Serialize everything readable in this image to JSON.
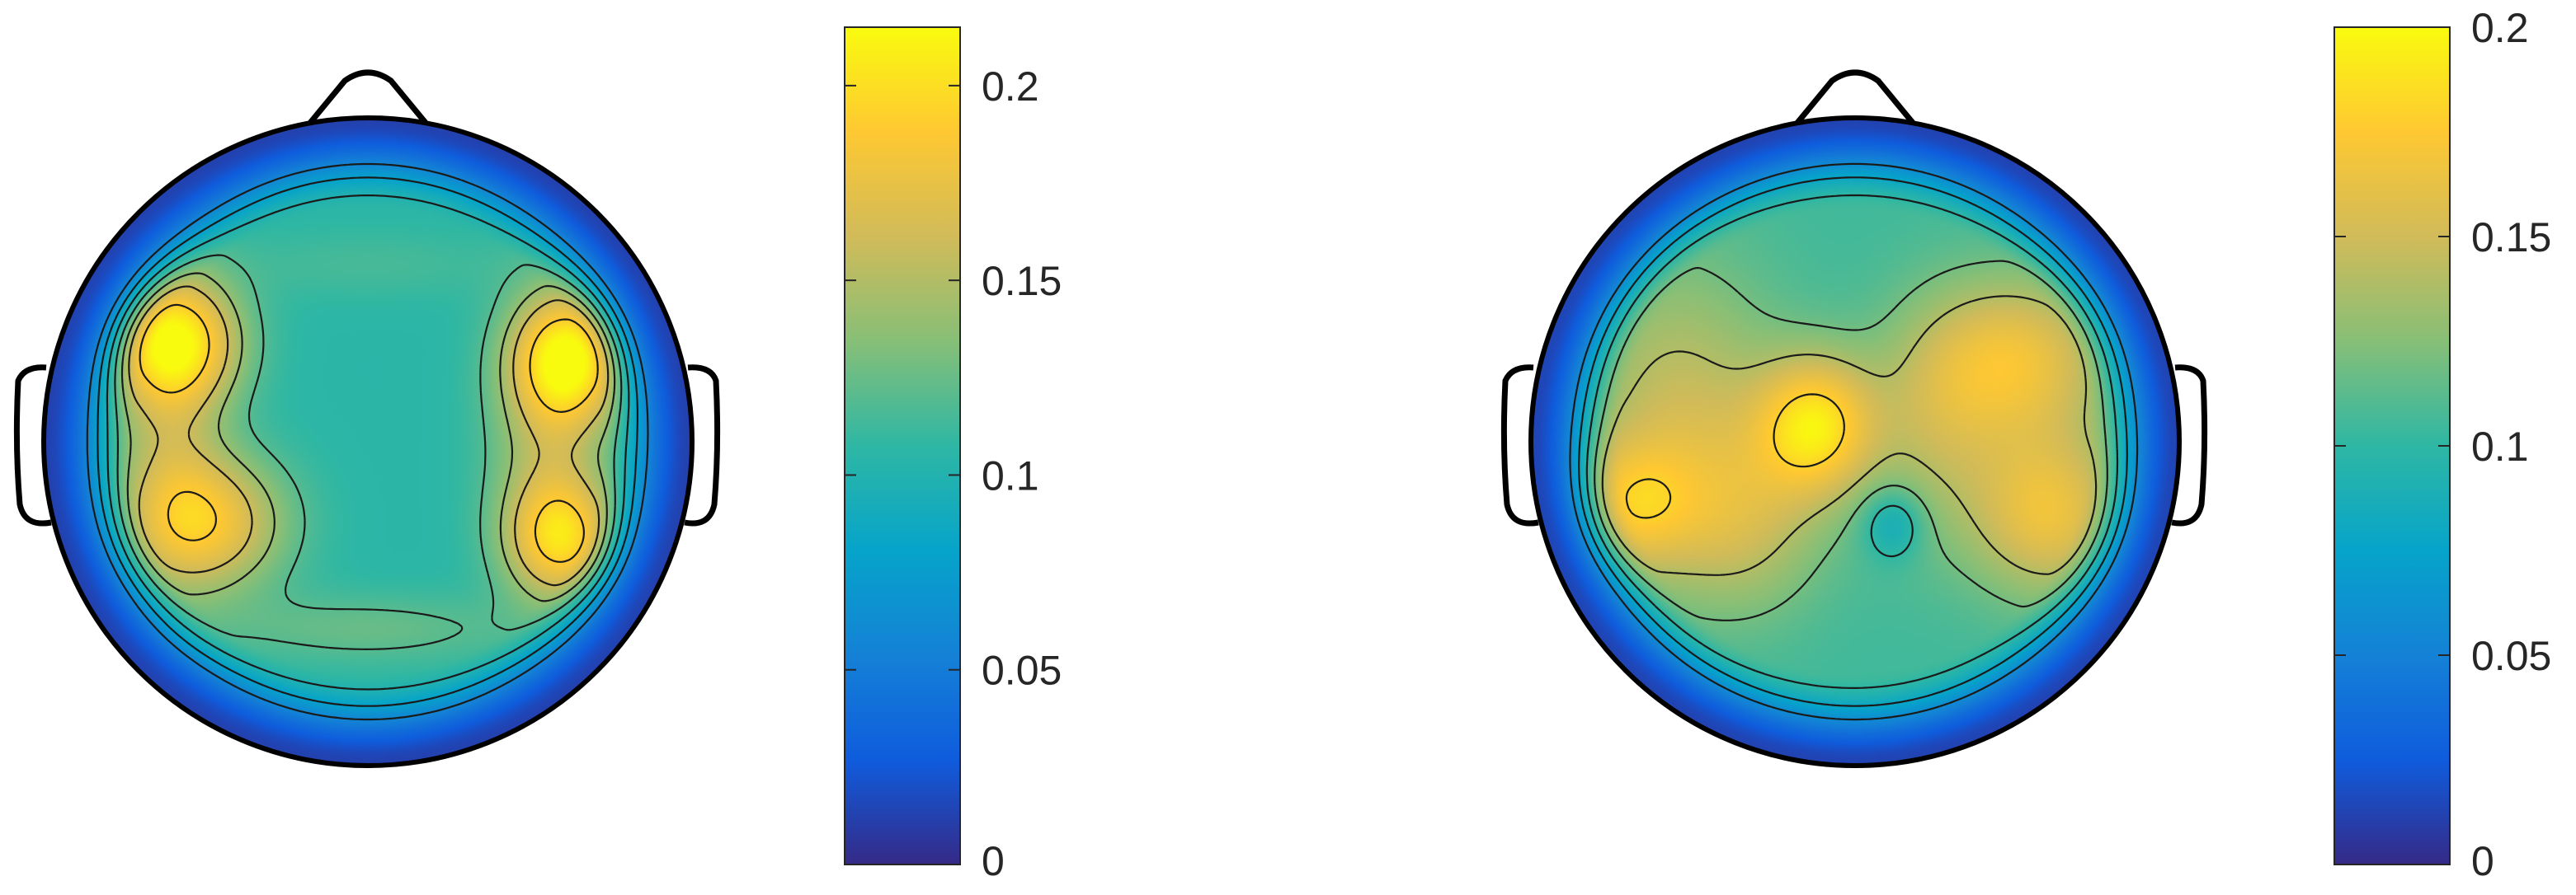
{
  "chart_data": [
    {
      "type": "heatmap",
      "title": "",
      "colormap": "parula",
      "colorbar": {
        "range": [
          0,
          0.215
        ],
        "ticks": [
          {
            "value": 0,
            "label": "0"
          },
          {
            "value": 0.05,
            "label": "0.05"
          },
          {
            "value": 0.1,
            "label": "0.1"
          },
          {
            "value": 0.15,
            "label": "0.15"
          },
          {
            "value": 0.2,
            "label": "0.2"
          }
        ]
      },
      "contour_levels": [
        0.06,
        0.08,
        0.1,
        0.12,
        0.14,
        0.16,
        0.19
      ],
      "blobs": [
        {
          "x": -0.6,
          "y": 0.31,
          "amp": 0.1,
          "sx": 0.14,
          "sy": 0.14
        },
        {
          "x": -0.5,
          "y": -0.25,
          "amp": 0.075,
          "sx": 0.17,
          "sy": 0.15
        },
        {
          "x": -0.62,
          "y": 0.0,
          "amp": 0.035,
          "sx": 0.12,
          "sy": 0.3
        },
        {
          "x": 0.62,
          "y": 0.26,
          "amp": 0.1,
          "sx": 0.12,
          "sy": 0.14
        },
        {
          "x": 0.6,
          "y": -0.3,
          "amp": 0.08,
          "sx": 0.12,
          "sy": 0.13
        },
        {
          "x": 0.56,
          "y": 0.0,
          "amp": 0.04,
          "sx": 0.13,
          "sy": 0.28
        },
        {
          "x": 0.0,
          "y": -0.58,
          "amp": 0.02,
          "sx": 0.35,
          "sy": 0.08
        },
        {
          "x": 0.0,
          "y": 0.55,
          "amp": 0.01,
          "sx": 0.35,
          "sy": 0.08
        }
      ]
    },
    {
      "type": "heatmap",
      "title": "",
      "colormap": "parula",
      "colorbar": {
        "range": [
          0,
          0.2
        ],
        "ticks": [
          {
            "value": 0,
            "label": "0"
          },
          {
            "value": 0.05,
            "label": "0.05"
          },
          {
            "value": 0.1,
            "label": "0.1"
          },
          {
            "value": 0.15,
            "label": "0.15"
          },
          {
            "value": 0.2,
            "label": "0.2"
          }
        ]
      },
      "contour_levels": [
        0.06,
        0.08,
        0.1,
        0.12,
        0.14,
        0.18
      ],
      "blobs": [
        {
          "x": -0.12,
          "y": 0.05,
          "amp": 0.08,
          "sx": 0.13,
          "sy": 0.15
        },
        {
          "x": -0.7,
          "y": -0.2,
          "amp": 0.05,
          "sx": 0.14,
          "sy": 0.14
        },
        {
          "x": -0.55,
          "y": 0.1,
          "amp": 0.04,
          "sx": 0.22,
          "sy": 0.32
        },
        {
          "x": -0.35,
          "y": -0.25,
          "amp": 0.035,
          "sx": 0.18,
          "sy": 0.2
        },
        {
          "x": 0.5,
          "y": 0.25,
          "amp": 0.06,
          "sx": 0.2,
          "sy": 0.18
        },
        {
          "x": 0.6,
          "y": -0.22,
          "amp": 0.06,
          "sx": 0.17,
          "sy": 0.18
        },
        {
          "x": 0.25,
          "y": 0.05,
          "amp": 0.03,
          "sx": 0.15,
          "sy": 0.25
        },
        {
          "x": 0.12,
          "y": -0.25,
          "amp": -0.03,
          "sx": 0.07,
          "sy": 0.08
        }
      ]
    }
  ]
}
